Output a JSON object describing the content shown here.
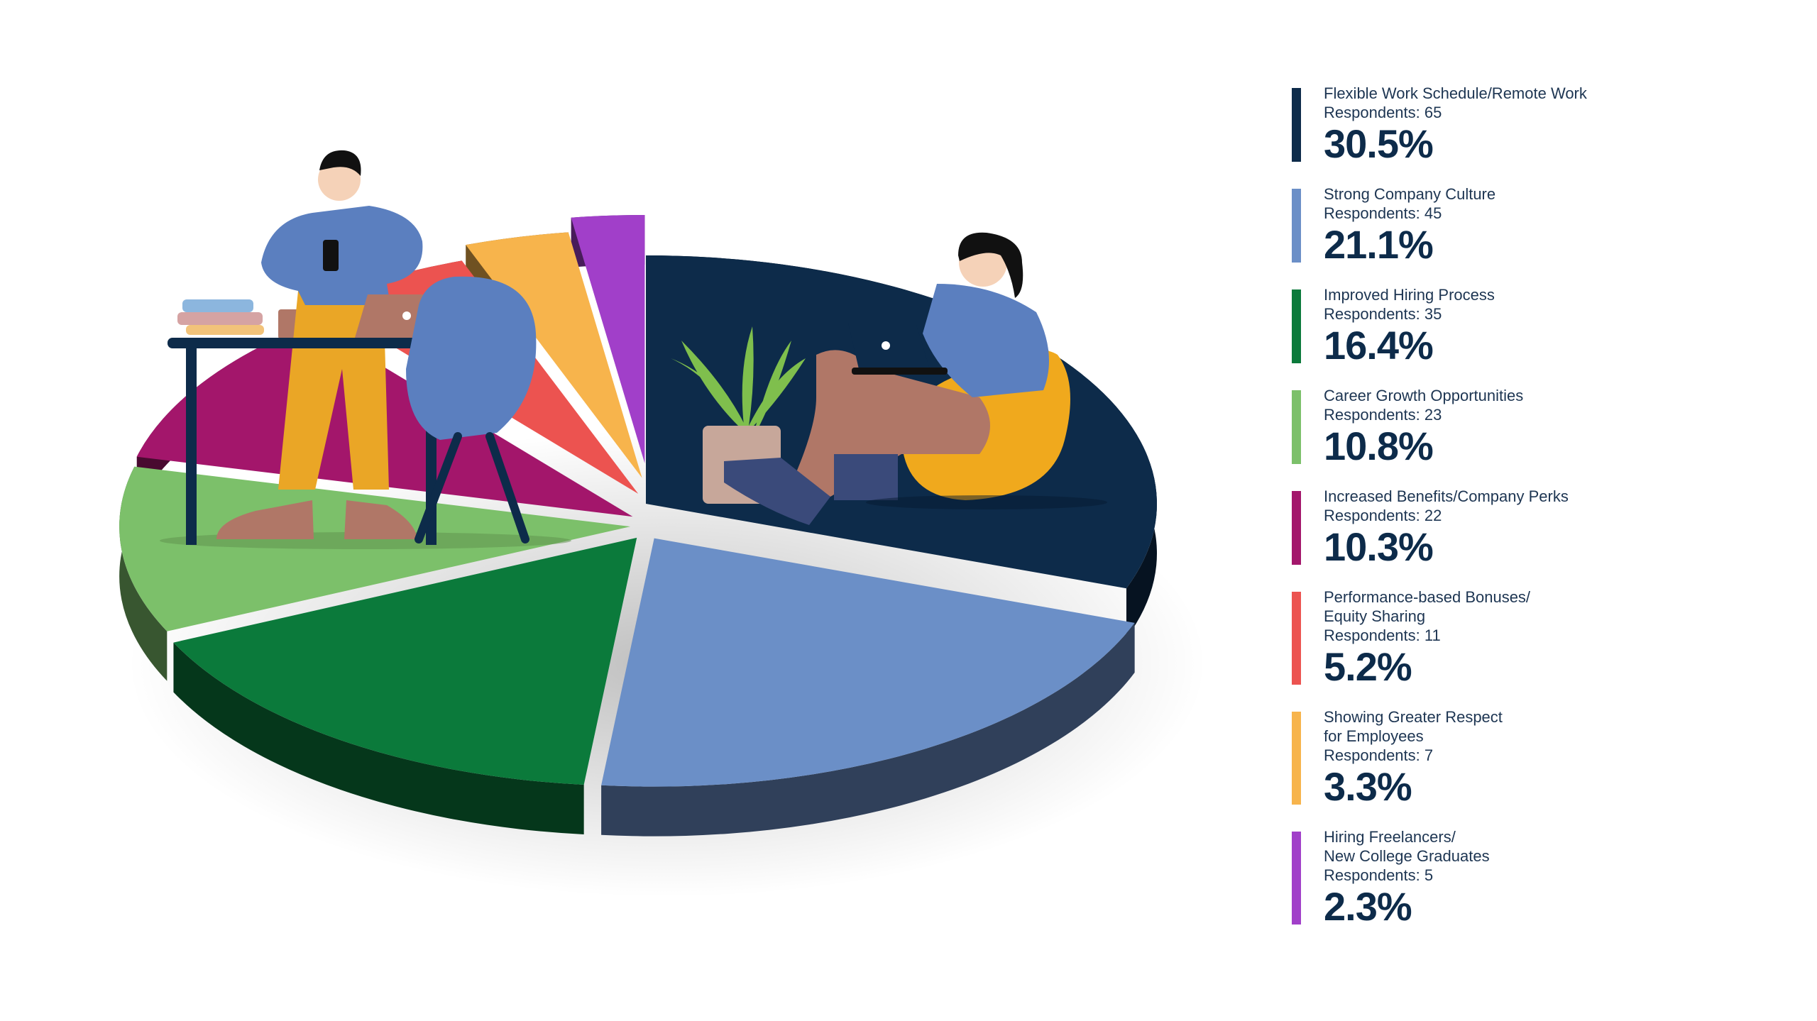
{
  "chart_data": {
    "type": "pie",
    "slices": [
      {
        "label": "Flexible Work Schedule/Remote Work",
        "respondents_label": "Respondents: 65",
        "respondents": 65,
        "percent": 30.5,
        "percent_label": "30.5%",
        "color": "#0d2b4a"
      },
      {
        "label": "Strong Company Culture",
        "respondents_label": "Respondents: 45",
        "respondents": 45,
        "percent": 21.1,
        "percent_label": "21.1%",
        "color": "#6b8fc7"
      },
      {
        "label": "Improved Hiring Process",
        "respondents_label": "Respondents: 35",
        "respondents": 35,
        "percent": 16.4,
        "percent_label": "16.4%",
        "color": "#0b7a3b"
      },
      {
        "label": "Career Growth Opportunities",
        "respondents_label": "Respondents: 23",
        "respondents": 23,
        "percent": 10.8,
        "percent_label": "10.8%",
        "color": "#7cc06a"
      },
      {
        "label": "Increased Benefits/Company Perks",
        "respondents_label": "Respondents: 22",
        "respondents": 22,
        "percent": 10.3,
        "percent_label": "10.3%",
        "color": "#a3166b"
      },
      {
        "label": "Performance-based Bonuses/\nEquity Sharing",
        "respondents_label": "Respondents: 11",
        "respondents": 11,
        "percent": 5.2,
        "percent_label": "5.2%",
        "color": "#ec5350"
      },
      {
        "label": "Showing Greater Respect\nfor Employees",
        "respondents_label": "Respondents: 7",
        "respondents": 7,
        "percent": 3.3,
        "percent_label": "3.3%",
        "color": "#f7b44c"
      },
      {
        "label": "Hiring Freelancers/\nNew College Graduates",
        "respondents_label": "Respondents: 5",
        "respondents": 5,
        "percent": 2.3,
        "percent_label": "2.3%",
        "color": "#a13fc9"
      }
    ],
    "legend_position": "right"
  },
  "illustration": {
    "elements": [
      "man-standing-with-phone",
      "desk-with-books-and-laptop",
      "chair",
      "woman-on-beanbag-with-laptop",
      "potted-plant"
    ],
    "colors": {
      "skin": "#f5d2b8",
      "hair": "#111111",
      "shirt": "#5b7fbf",
      "pants_man": "#eaa626",
      "pants_woman": "#b07767",
      "beanbag": "#f0a91d",
      "desk": "#0d2b4a",
      "plant": "#7fbf4d",
      "pot": "#c7a79a"
    }
  }
}
